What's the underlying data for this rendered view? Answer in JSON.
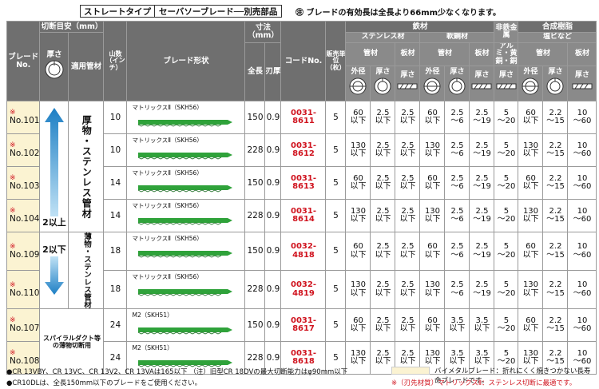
{
  "title": {
    "type_label": "ストレートタイプ",
    "main_label": "セーバソーブレード──別売部品",
    "note": "㊟ ブレードの有効長は全長より66mm少なくなります。"
  },
  "headers": {
    "blade_no": "ブレードNo.",
    "cut_guide": "切断目安（mm）",
    "thickness": "厚さ",
    "pipe": "適用管材",
    "teeth": "山数（インチ）",
    "shape": "ブレード形状",
    "dimensions": "寸法（mm）",
    "length": "全長",
    "blade_thickness": "刃厚",
    "code": "コードNo.",
    "unit": "販売単位（枚）",
    "ferrous": "鉄材",
    "stainless": "ステンレス材",
    "mild_steel": "軟鋼材",
    "nonferrous": "非鉄金属",
    "alumi": "アルミ・黄銅・銅",
    "resin": "合成樹脂",
    "pvc": "塩ビなど",
    "pipe_short": "管材",
    "plate": "板材",
    "outer_dia": "外径",
    "thick_short": "厚さ"
  },
  "groups": {
    "thick_2_up": "2以上",
    "thick_2_down": "2以下",
    "heavy_pipe": "厚物・ステンレス管材",
    "thin_pipe": "薄物・ステンレス管材",
    "duct": "スパイラルダクト等の薄物切断用"
  },
  "rows": [
    {
      "mark": "※",
      "no": "No.101",
      "teeth": "10",
      "material": "マトリックスⅡ（SKH56）",
      "length": "150",
      "thick": "0.9",
      "code": "0031-8611",
      "unit": "5",
      "ss_od": [
        "60",
        "以下"
      ],
      "ss_t": [
        "2.5",
        "以下"
      ],
      "ss_plate": [
        "2.5",
        "以下"
      ],
      "ms_od": [
        "60",
        "以下"
      ],
      "ms_t": [
        "2.5",
        "〜6"
      ],
      "ms_plate": [
        "2.5",
        "〜19"
      ],
      "al": [
        "5",
        "〜20"
      ],
      "pv_od": [
        "60",
        "以下"
      ],
      "pv_t": [
        "2.2",
        "〜15"
      ],
      "pv_plate": [
        "10",
        "〜60"
      ]
    },
    {
      "mark": "※",
      "no": "No.102",
      "teeth": "10",
      "material": "マトリックスⅡ（SKH56）",
      "length": "228",
      "thick": "0.9",
      "code": "0031-8612",
      "unit": "5",
      "ss_od": [
        "130",
        "以下"
      ],
      "ss_t": [
        "2.5",
        "以下"
      ],
      "ss_plate": [
        "2.5",
        "以下"
      ],
      "ms_od": [
        "130",
        "以下"
      ],
      "ms_t": [
        "2.5",
        "〜6"
      ],
      "ms_plate": [
        "2.5",
        "〜19"
      ],
      "al": [
        "5",
        "〜20"
      ],
      "pv_od": [
        "130",
        "以下"
      ],
      "pv_t": [
        "2.2",
        "〜15"
      ],
      "pv_plate": [
        "10",
        "〜60"
      ]
    },
    {
      "mark": "※",
      "no": "No.103",
      "teeth": "14",
      "material": "マトリックスⅡ（SKH56）",
      "length": "150",
      "thick": "0.9",
      "code": "0031-8613",
      "unit": "5",
      "ss_od": [
        "60",
        "以下"
      ],
      "ss_t": [
        "2.5",
        "以下"
      ],
      "ss_plate": [
        "2.5",
        "以下"
      ],
      "ms_od": [
        "60",
        "以下"
      ],
      "ms_t": [
        "2.5",
        "〜6"
      ],
      "ms_plate": [
        "2.5",
        "〜19"
      ],
      "al": [
        "5",
        "〜20"
      ],
      "pv_od": [
        "60",
        "以下"
      ],
      "pv_t": [
        "2.2",
        "〜15"
      ],
      "pv_plate": [
        "10",
        "〜60"
      ]
    },
    {
      "mark": "※",
      "no": "No.104",
      "teeth": "14",
      "material": "マトリックスⅡ（SKH56）",
      "length": "228",
      "thick": "0.9",
      "code": "0031-8614",
      "unit": "5",
      "ss_od": [
        "130",
        "以下"
      ],
      "ss_t": [
        "2.5",
        "以下"
      ],
      "ss_plate": [
        "2.5",
        "以下"
      ],
      "ms_od": [
        "130",
        "以下"
      ],
      "ms_t": [
        "2.5",
        "〜6"
      ],
      "ms_plate": [
        "2.5",
        "〜19"
      ],
      "al": [
        "5",
        "〜20"
      ],
      "pv_od": [
        "130",
        "以下"
      ],
      "pv_t": [
        "2.2",
        "〜15"
      ],
      "pv_plate": [
        "10",
        "〜60"
      ]
    },
    {
      "mark": "※",
      "no": "No.109",
      "teeth": "18",
      "material": "マトリックスⅡ（SKH56）",
      "length": "150",
      "thick": "0.9",
      "code": "0032-4818",
      "unit": "5",
      "ss_od": [
        "60",
        "以下"
      ],
      "ss_t": [
        "2.5",
        "以下"
      ],
      "ss_plate": [
        "2.5",
        "以下"
      ],
      "ms_od": [
        "60",
        "以下"
      ],
      "ms_t": [
        "2.5",
        "〜6"
      ],
      "ms_plate": [
        "2.5",
        "〜19"
      ],
      "al": [
        "5",
        "〜20"
      ],
      "pv_od": [
        "60",
        "以下"
      ],
      "pv_t": [
        "2.2",
        "〜15"
      ],
      "pv_plate": [
        "10",
        "〜60"
      ]
    },
    {
      "mark": "※",
      "no": "No.110",
      "teeth": "18",
      "material": "マトリックスⅡ（SKH56）",
      "length": "228",
      "thick": "0.9",
      "code": "0032-4819",
      "unit": "5",
      "ss_od": [
        "130",
        "以下"
      ],
      "ss_t": [
        "2.5",
        "以下"
      ],
      "ss_plate": [
        "2.5",
        "以下"
      ],
      "ms_od": [
        "130",
        "以下"
      ],
      "ms_t": [
        "2.5",
        "〜6"
      ],
      "ms_plate": [
        "2.5",
        "〜19"
      ],
      "al": [
        "5",
        "〜20"
      ],
      "pv_od": [
        "130",
        "以下"
      ],
      "pv_t": [
        "2.2",
        "〜15"
      ],
      "pv_plate": [
        "10",
        "〜60"
      ]
    },
    {
      "mark": "※",
      "no": "No.107",
      "teeth": "24",
      "material": "M2（SKH51）",
      "length": "150",
      "thick": "0.9",
      "code": "0031-8617",
      "unit": "5",
      "ss_od": [
        "60",
        "以下"
      ],
      "ss_t": [
        "2.5",
        "以下"
      ],
      "ss_plate": [
        "2.5",
        "以下"
      ],
      "ms_od": [
        "60",
        "以下"
      ],
      "ms_t": [
        "3.5",
        "以下"
      ],
      "ms_plate": [
        "3.5",
        "以下"
      ],
      "al": [
        "5",
        "〜20"
      ],
      "pv_od": [
        "60",
        "以下"
      ],
      "pv_t": [
        "2.2",
        "〜15"
      ],
      "pv_plate": [
        "10",
        "〜60"
      ]
    },
    {
      "mark": "※",
      "no": "No.108",
      "teeth": "24",
      "material": "M2（SKH51）",
      "length": "228",
      "thick": "0.9",
      "code": "0031-8618",
      "unit": "5",
      "ss_od": [
        "130",
        "以下"
      ],
      "ss_t": [
        "2.5",
        "以下"
      ],
      "ss_plate": [
        "2.5",
        "以下"
      ],
      "ms_od": [
        "130",
        "以下"
      ],
      "ms_t": [
        "3.5",
        "以下"
      ],
      "ms_plate": [
        "3.5",
        "以下"
      ],
      "al": [
        "5",
        "〜20"
      ],
      "pv_od": [
        "130",
        "以下"
      ],
      "pv_t": [
        "2.2",
        "〜15"
      ],
      "pv_plate": [
        "10",
        "〜60"
      ]
    }
  ],
  "footer": {
    "line1": "●CR 13VBY、CR 13VC、CR 13V2、CR 13VAは165以下 （注）旧型CR 18DVの最大切断能力はφ90mm以下",
    "line2": "●CR10DLは、全長150mm以下のブレードをご使用ください。",
    "legend_bimetal": "バイメタルブレード：折れにくく焼きつかない長寿命ブレードです。",
    "legend_mark": "※（刃先材質）マトリックスⅡ：ステンレス切断に最適です。"
  },
  "colors": {
    "header": "#6f6f6f",
    "bimetal": "#fbf3d2",
    "accent_red": "#d0141f",
    "blade_green": "#2fa23a",
    "arrow_blue": "#3aa0d8"
  }
}
